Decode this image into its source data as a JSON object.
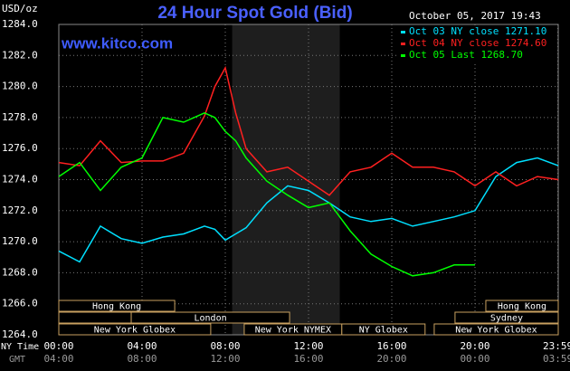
{
  "chart_data": {
    "type": "line",
    "title": "24 Hour Spot Gold (Bid)",
    "y_label": "USD/oz",
    "timestamp": "October 05, 2017 19:43",
    "watermark": "www.kitco.com",
    "x": [
      0,
      1,
      2,
      3,
      4,
      5,
      6,
      7,
      7.5,
      8,
      8.5,
      9,
      10,
      11,
      12,
      13,
      14,
      15,
      16,
      17,
      18,
      19,
      20,
      21,
      22,
      23,
      24
    ],
    "series": [
      {
        "name": "Oct 03 NY close 1271.10",
        "color": "#00e0ff",
        "values": [
          1269.4,
          1268.7,
          1271.0,
          1270.2,
          1269.9,
          1270.3,
          1270.5,
          1271.0,
          1270.8,
          1270.1,
          1270.5,
          1270.9,
          1272.5,
          1273.6,
          1273.3,
          1272.5,
          1271.6,
          1271.3,
          1271.5,
          1271.0,
          1271.3,
          1271.6,
          1272.0,
          1274.2,
          1275.1,
          1275.4,
          1274.9
        ]
      },
      {
        "name": "Oct 04 NY close 1274.60",
        "color": "#ff2020",
        "values": [
          1275.1,
          1274.9,
          1276.5,
          1275.1,
          1275.2,
          1275.2,
          1275.7,
          1278.1,
          1280.0,
          1281.2,
          1278.3,
          1276.0,
          1274.5,
          1274.8,
          1273.9,
          1273.0,
          1274.5,
          1274.8,
          1275.7,
          1274.8,
          1274.8,
          1274.5,
          1273.6,
          1274.5,
          1273.6,
          1274.2,
          1274.0
        ]
      },
      {
        "name": "Oct 05 Last 1268.70",
        "color": "#00ff00",
        "values": [
          1274.2,
          1275.1,
          1273.3,
          1274.8,
          1275.4,
          1278.0,
          1277.7,
          1278.3,
          1278.0,
          1277.1,
          1276.5,
          1275.4,
          1273.9,
          1273.0,
          1272.2,
          1272.5,
          1270.7,
          1269.2,
          1268.4,
          1267.8,
          1268.0,
          1268.5,
          1268.5,
          null,
          null,
          null,
          null
        ]
      }
    ],
    "xlim": [
      0,
      24
    ],
    "ylim": [
      1264,
      1284
    ],
    "yticks": [
      {
        "value": 1264,
        "label": "1264.0"
      },
      {
        "value": 1266,
        "label": "1266.0"
      },
      {
        "value": 1268,
        "label": "1268.0"
      },
      {
        "value": 1270,
        "label": "1270.0"
      },
      {
        "value": 1272,
        "label": "1272.0"
      },
      {
        "value": 1274,
        "label": "1274.0"
      },
      {
        "value": 1276,
        "label": "1276.0"
      },
      {
        "value": 1278,
        "label": "1278.0"
      },
      {
        "value": 1280,
        "label": "1280.0"
      },
      {
        "value": 1282,
        "label": "1282.0"
      },
      {
        "value": 1284,
        "label": "1284.0"
      }
    ],
    "x_axis_label": "NY Time",
    "xticks": [
      {
        "value": 0,
        "label": "00:00"
      },
      {
        "value": 4,
        "label": "04:00"
      },
      {
        "value": 8,
        "label": "08:00"
      },
      {
        "value": 12,
        "label": "12:00"
      },
      {
        "value": 16,
        "label": "16:00"
      },
      {
        "value": 20,
        "label": "20:00"
      },
      {
        "value": 23.98,
        "label": "23:59"
      }
    ],
    "x2_axis_label": "GMT",
    "x2ticks": [
      {
        "value": 0,
        "label": "04:00"
      },
      {
        "value": 4,
        "label": "08:00"
      },
      {
        "value": 8,
        "label": "12:00"
      },
      {
        "value": 12,
        "label": "16:00"
      },
      {
        "value": 16,
        "label": "20:00"
      },
      {
        "value": 20,
        "label": "00:00"
      },
      {
        "value": 23.98,
        "label": "03:59"
      }
    ],
    "shaded": [
      8.33,
      13.5
    ],
    "grid": true,
    "legend": "top-right",
    "sessions": [
      {
        "label": "Hong Kong",
        "start": 0,
        "end": 5.57,
        "row": 0
      },
      {
        "label": "Hong Kong",
        "start": 20.52,
        "end": 24,
        "row": 0
      },
      {
        "start": 0,
        "end": 3.48,
        "row": 1
      },
      {
        "label": "London",
        "start": 3.48,
        "end": 11.09,
        "row": 1
      },
      {
        "label": "Sydney",
        "start": 19.04,
        "end": 24,
        "row": 1
      },
      {
        "label": "New York Globex",
        "start": 0,
        "end": 7.3,
        "row": 2
      },
      {
        "label": "New York NYMEX",
        "start": 8.91,
        "end": 13.6,
        "row": 2
      },
      {
        "label": "NY Globex",
        "start": 13.6,
        "end": 17.6,
        "row": 2
      },
      {
        "label": "New York Globex",
        "start": 18.04,
        "end": 24,
        "row": 2
      }
    ]
  }
}
